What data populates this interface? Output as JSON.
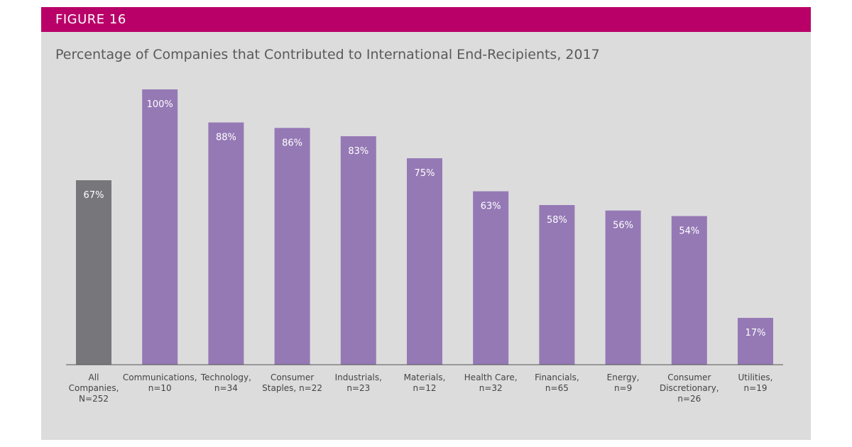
{
  "figure_label": "FIGURE 16",
  "colors": {
    "banner": "#b80068",
    "background": "#dcdcdc",
    "highlight_bar": "#77777b",
    "bar": "#9579b5"
  },
  "chart_data": {
    "type": "bar",
    "title": "Percentage of Companies that Contributed to International End-Recipients, 2017",
    "xlabel": "",
    "ylabel": "",
    "ylim": [
      0,
      100
    ],
    "grid": false,
    "categories": [
      [
        "All",
        "Companies,",
        "N=252"
      ],
      [
        "Communications,",
        "n=10"
      ],
      [
        "Technology,",
        "n=34"
      ],
      [
        "Consumer",
        "Staples, n=22"
      ],
      [
        "Industrials,",
        "n=23"
      ],
      [
        "Materials,",
        "n=12"
      ],
      [
        "Health Care,",
        "n=32"
      ],
      [
        "Financials,",
        "n=65"
      ],
      [
        "Energy,",
        "n=9"
      ],
      [
        "Consumer",
        "Discretionary,",
        "n=26"
      ],
      [
        "Utilities,",
        "n=19"
      ]
    ],
    "values": [
      67,
      100,
      88,
      86,
      83,
      75,
      63,
      58,
      56,
      54,
      17
    ],
    "data_labels": [
      "67%",
      "100%",
      "88%",
      "86%",
      "83%",
      "75%",
      "63%",
      "58%",
      "56%",
      "54%",
      "17%"
    ],
    "highlight_index": 0
  }
}
